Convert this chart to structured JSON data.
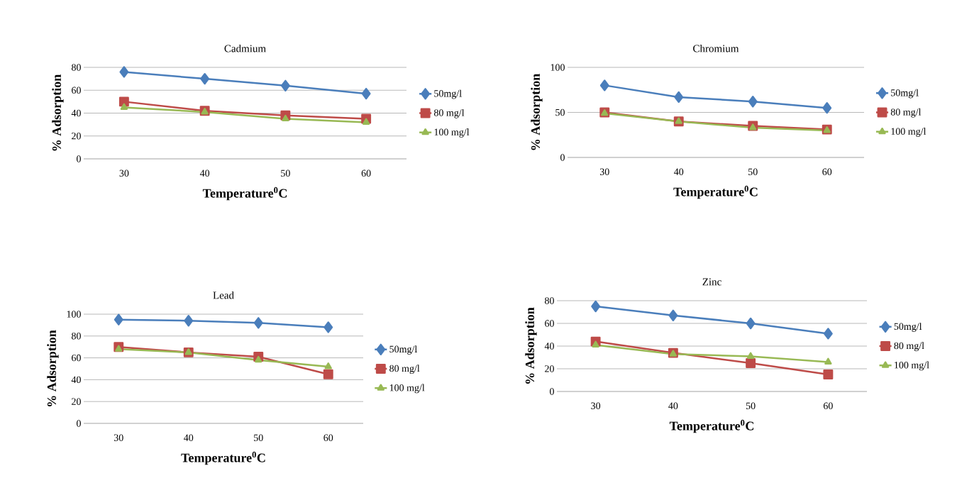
{
  "chart_data": [
    {
      "type": "line",
      "title": "Cadmium",
      "xlabel": "Temperature$^{0}$C",
      "ylabel": "% Adsorption",
      "categories": [
        "30",
        "40",
        "50",
        "60"
      ],
      "ylim": [
        0,
        80
      ],
      "yticks": [
        0,
        20,
        40,
        60,
        80
      ],
      "grid": "y",
      "legend": "right",
      "line_style": "solid",
      "series": [
        {
          "name": "50mg/l",
          "color": "#4a7ebb",
          "marker": "diamond",
          "values": [
            76,
            70,
            64,
            57
          ]
        },
        {
          "name": "80 mg/l",
          "color": "#be4b48",
          "marker": "square",
          "values": [
            50,
            42,
            38,
            35
          ]
        },
        {
          "name": "100 mg/l",
          "color": "#98b954",
          "marker": "triangle",
          "values": [
            45,
            41,
            35,
            32
          ]
        }
      ]
    },
    {
      "type": "line",
      "title": "Chromium",
      "xlabel": "Temperature$^{0}$C",
      "ylabel": "% Adsorption",
      "categories": [
        "30",
        "40",
        "50",
        "60"
      ],
      "ylim": [
        0,
        100
      ],
      "yticks": [
        0,
        50,
        100
      ],
      "grid": "y",
      "legend": "right",
      "line_style": "solid",
      "series": [
        {
          "name": "50mg/l",
          "color": "#4a7ebb",
          "marker": "diamond",
          "values": [
            80,
            67,
            62,
            55
          ]
        },
        {
          "name": "80 mg/l",
          "color": "#be4b48",
          "marker": "square",
          "values": [
            50,
            40,
            35,
            31
          ]
        },
        {
          "name": "100 mg/l",
          "color": "#98b954",
          "marker": "triangle",
          "values": [
            49,
            40,
            33,
            30
          ]
        }
      ]
    },
    {
      "type": "line",
      "title": "Lead",
      "xlabel": "Temperature$^{0}$C",
      "ylabel": "% Adsorption",
      "categories": [
        "30",
        "40",
        "50",
        "60"
      ],
      "ylim": [
        0,
        100
      ],
      "yticks": [
        0,
        20,
        40,
        60,
        80,
        100
      ],
      "grid": "y",
      "legend": "right",
      "line_style": "solid",
      "series": [
        {
          "name": "50mg/l",
          "color": "#4a7ebb",
          "marker": "diamond",
          "values": [
            95,
            94,
            92,
            88
          ]
        },
        {
          "name": "80 mg/l",
          "color": "#be4b48",
          "marker": "square",
          "values": [
            70,
            65,
            61,
            45
          ]
        },
        {
          "name": "100 mg/l",
          "color": "#98b954",
          "marker": "triangle",
          "values": [
            68,
            65,
            58,
            52
          ]
        }
      ]
    },
    {
      "type": "line",
      "title": "Zinc",
      "xlabel": "Temperature$^{0}$C",
      "ylabel": "% Adsorption",
      "categories": [
        "30",
        "40",
        "50",
        "60"
      ],
      "ylim": [
        0,
        80
      ],
      "yticks": [
        0,
        20,
        40,
        60,
        80
      ],
      "grid": "y",
      "legend": "right",
      "line_style": "solid",
      "series": [
        {
          "name": "50mg/l",
          "color": "#4a7ebb",
          "marker": "diamond",
          "values": [
            75,
            67,
            60,
            51
          ]
        },
        {
          "name": "80 mg/l",
          "color": "#be4b48",
          "marker": "square",
          "values": [
            44,
            34,
            25,
            15
          ]
        },
        {
          "name": "100 mg/l",
          "color": "#98b954",
          "marker": "triangle",
          "values": [
            41,
            33,
            31,
            26
          ]
        }
      ]
    }
  ]
}
